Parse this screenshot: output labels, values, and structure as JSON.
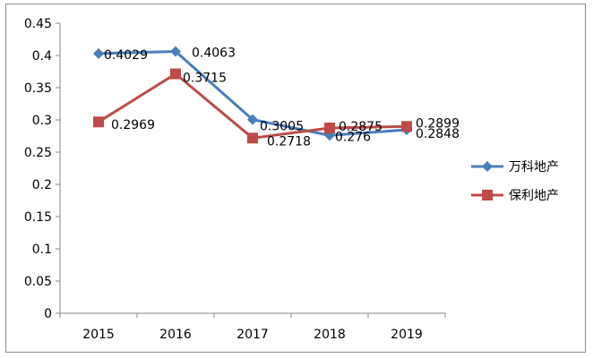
{
  "chart_data": {
    "type": "line",
    "categories": [
      "2015",
      "2016",
      "2017",
      "2018",
      "2019"
    ],
    "ylim": [
      0,
      0.45
    ],
    "yticks": [
      "0",
      "0.05",
      "0.1",
      "0.15",
      "0.2",
      "0.25",
      "0.3",
      "0.35",
      "0.4",
      "0.45"
    ],
    "legend_position": "right",
    "series": [
      {
        "name": "万科地产",
        "color": "#4a7ebb",
        "marker": "diamond",
        "values": [
          0.4029,
          0.4063,
          0.3005,
          0.276,
          0.2848
        ],
        "labels": [
          "0.4029",
          "0.4063",
          "0.3005",
          "0.276",
          "0.2848"
        ]
      },
      {
        "name": "保利地产",
        "color": "#be4b48",
        "marker": "square",
        "values": [
          0.2969,
          0.3715,
          0.2718,
          0.2875,
          0.2899
        ],
        "labels": [
          "0.2969",
          "0.3715",
          "0.2718",
          "0.2875",
          "0.2899"
        ]
      }
    ]
  }
}
